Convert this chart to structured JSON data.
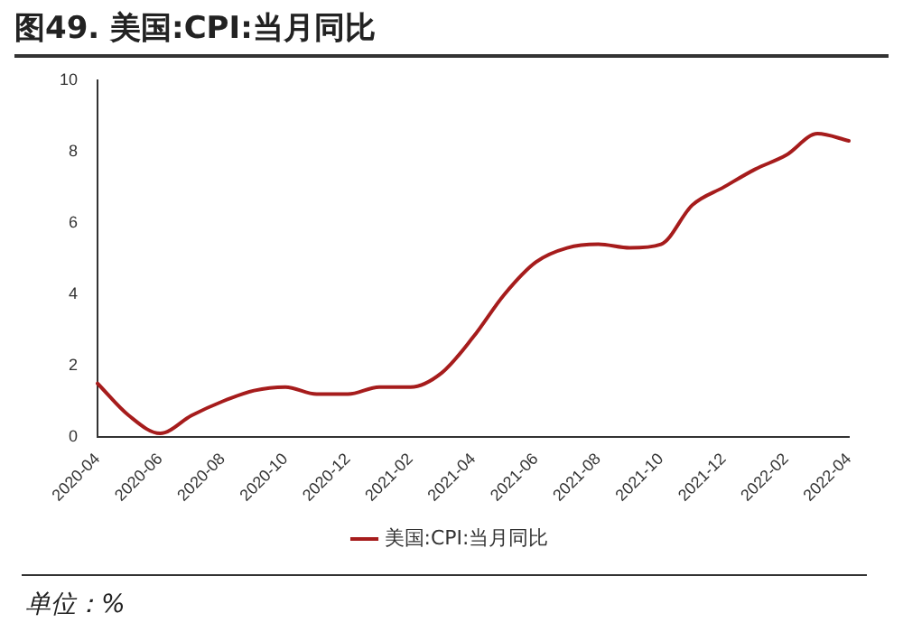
{
  "chart_data": {
    "type": "line",
    "title": "图49. 美国:CPI:当月同比",
    "categories": [
      "2020-04",
      null,
      "2020-06",
      null,
      "2020-08",
      null,
      "2020-10",
      null,
      "2020-12",
      null,
      "2021-02",
      null,
      "2021-04",
      null,
      "2021-06",
      null,
      "2021-08",
      null,
      "2021-10",
      null,
      "2021-12",
      null,
      "2022-02",
      null,
      "2022-04"
    ],
    "series": [
      {
        "name": "美国:CPI:当月同比",
        "color": "#a61c1c",
        "values": [
          1.5,
          0.6,
          0.1,
          0.6,
          1.0,
          1.3,
          1.4,
          1.2,
          1.2,
          1.4,
          1.4,
          1.8,
          2.8,
          4.0,
          4.9,
          5.3,
          5.4,
          5.3,
          5.4,
          6.5,
          7.0,
          7.5,
          7.9,
          8.5,
          8.3
        ]
      }
    ],
    "ylim": [
      0,
      10
    ],
    "yticks": [
      0,
      2,
      4,
      6,
      8,
      10
    ],
    "grid": false,
    "legend": "bottom",
    "marker": "none",
    "line_style": "solid",
    "annotations": [
      "单位：%"
    ]
  }
}
